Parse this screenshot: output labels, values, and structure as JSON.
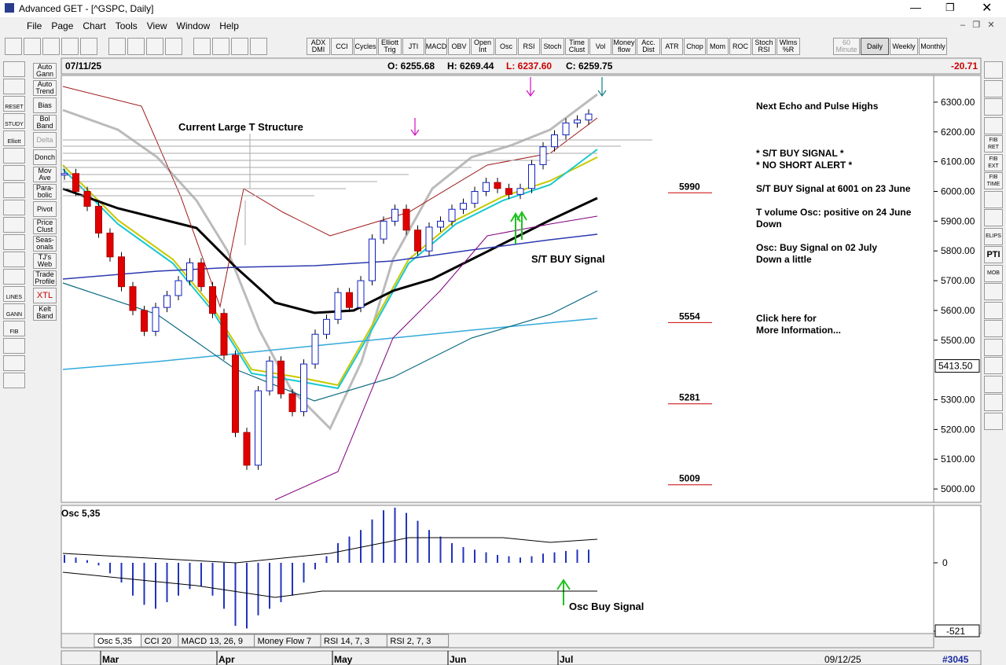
{
  "window": {
    "title": "Advanced GET - [^GSPC, Daily]",
    "menu": [
      "File",
      "Page",
      "Chart",
      "Tools",
      "View",
      "Window",
      "Help"
    ]
  },
  "toolbar": {
    "studies": [
      "ADX DMI",
      "CCI",
      "Cycles",
      "Elliott Trig",
      "JTI",
      "MACD",
      "OBV",
      "Open Int",
      "Osc",
      "RSI",
      "Stoch",
      "Time Clust",
      "Vol",
      "Money flow",
      "Acc. Dist",
      "ATR",
      "Chop",
      "Mom",
      "ROC",
      "Stoch RSI",
      "Wlms %R"
    ],
    "periods": [
      "60 Minute",
      "Daily",
      "Weekly",
      "Monthly"
    ]
  },
  "left_toolbar": {
    "icons": [
      "RESET",
      "STUDY",
      "Elliott",
      "LINES",
      "GANN",
      "FIB"
    ],
    "studies": [
      "Auto Gann",
      "Auto Trend",
      "Bias",
      "Bol Band",
      "Delta",
      "Donch",
      "Mov Ave",
      "Para-bolic",
      "Pivot",
      "Price Clust",
      "Seas-onals",
      "TJ's Web",
      "Trade Profile",
      "XTL",
      "Kelt Band"
    ]
  },
  "right_toolbar": [
    "FIB RET",
    "FIB EXT",
    "FIB TIME",
    "ELIPS",
    "PTI",
    "MOB"
  ],
  "header": {
    "date": "07/11/25",
    "open": "O: 6255.68",
    "high": "H: 6269.44",
    "low": "L: 6237.60",
    "close": "C: 6259.75",
    "change": "-20.71"
  },
  "price_chart": {
    "type": "candlestick",
    "closes": [
      6060,
      6000,
      5950,
      5860,
      5780,
      5680,
      5600,
      5530,
      5610,
      5650,
      5700,
      5760,
      5680,
      5590,
      5450,
      5190,
      5080,
      5330,
      5430,
      5320,
      5260,
      5420,
      5520,
      5570,
      5660,
      5610,
      5700,
      5840,
      5900,
      5940,
      5870,
      5800,
      5880,
      5900,
      5940,
      5960,
      6000,
      6030,
      6010,
      5990,
      6010,
      6090,
      6150,
      6190,
      6230,
      6240,
      6260
    ],
    "ylim": [
      4958,
      6387
    ],
    "yticks": [
      {
        "value": 6300,
        "label": "6300.00"
      },
      {
        "value": 6200,
        "label": "6200.00"
      },
      {
        "value": 6100,
        "label": "6100.00"
      },
      {
        "value": 6000,
        "label": "6000.00"
      },
      {
        "value": 5900,
        "label": "5900.00"
      },
      {
        "value": 5800,
        "label": "5800.00"
      },
      {
        "value": 5700,
        "label": "5700.00"
      },
      {
        "value": 5600,
        "label": "5600.00"
      },
      {
        "value": 5500,
        "label": "5500.00"
      },
      {
        "value": 5300,
        "label": "5300.00"
      },
      {
        "value": 5200,
        "label": "5200.00"
      },
      {
        "value": 5100,
        "label": "5100.00"
      },
      {
        "value": 5000,
        "label": "5000.00"
      }
    ],
    "cursor_price": {
      "value": 5413.5,
      "label": "5413.50"
    },
    "levels": [
      5990,
      5554,
      5281,
      5009
    ],
    "annotations": {
      "structure": "Current Large T Structure",
      "buy_signal": "S/T BUY Signal"
    },
    "notes": [
      "Next Echo and Pulse Highs",
      "* S/T BUY SIGNAL *",
      "* NO SHORT ALERT *",
      "S/T BUY Signal at 6001 on 23 June",
      "T volume Osc: positive on 24 June",
      "Down",
      "Osc: Buy Signal on 02 July",
      "Down a little",
      "Click here for",
      "More Information..."
    ]
  },
  "osc_chart": {
    "type": "bar",
    "title": "Osc 5,35",
    "values": [
      60,
      40,
      20,
      -20,
      -80,
      -150,
      -250,
      -320,
      -350,
      -300,
      -250,
      -200,
      -180,
      -250,
      -350,
      -480,
      -500,
      -400,
      -350,
      -300,
      -250,
      -150,
      -50,
      50,
      150,
      200,
      250,
      330,
      400,
      420,
      380,
      320,
      250,
      200,
      150,
      120,
      100,
      80,
      60,
      50,
      40,
      50,
      70,
      80,
      90,
      100,
      100
    ],
    "ylim": [
      -533,
      425
    ],
    "yticks": [
      0,
      -521
    ],
    "annotation": "Osc Buy Signal"
  },
  "tabs": [
    "Osc 5,35",
    "CCI 20",
    "MACD 13, 26, 9",
    "Money Flow 7",
    "RSI 14, 7, 3",
    "RSI 2, 7, 3"
  ],
  "x_axis": {
    "months": [
      "Mar",
      "Apr",
      "May",
      "Jun",
      "Jul"
    ],
    "end_date": "09/12/25",
    "bar_count": "#3045"
  }
}
